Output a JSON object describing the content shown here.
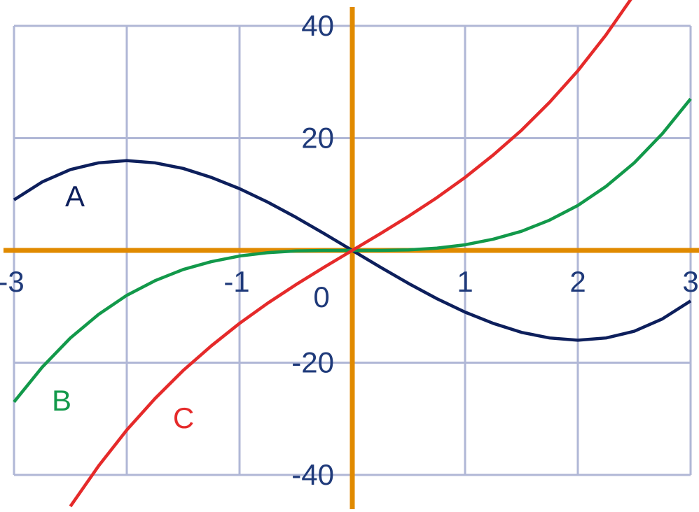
{
  "chart_data": {
    "type": "line",
    "xlim": [
      -3,
      3
    ],
    "ylim": [
      -40,
      40
    ],
    "xticks": [
      -3,
      -1,
      0,
      1,
      2,
      3
    ],
    "yticks": [
      -40,
      -20,
      20,
      40
    ],
    "xgrid": [
      -3,
      -2,
      -1,
      1,
      2,
      3
    ],
    "ygrid": [
      -40,
      -20,
      20,
      40
    ],
    "grid": true,
    "series": [
      {
        "name": "A",
        "color": "#0d1f5c",
        "x": [
          -3,
          -2.75,
          -2.5,
          -2.25,
          -2,
          -1.75,
          -1.5,
          -1.25,
          -1,
          -0.75,
          -0.5,
          -0.25,
          0,
          0.25,
          0.5,
          0.75,
          1,
          1.25,
          1.5,
          1.75,
          2,
          2.25,
          2.5,
          2.75,
          3
        ],
        "values": [
          9,
          12.2,
          14.4,
          15.6,
          16,
          15.6,
          14.6,
          13,
          11,
          8.6,
          5.9,
          3,
          0,
          -3,
          -5.9,
          -8.6,
          -11,
          -13,
          -14.6,
          -15.6,
          -16,
          -15.6,
          -14.4,
          -12.2,
          -9
        ]
      },
      {
        "name": "B",
        "color": "#12994a",
        "x": [
          -3,
          -2.75,
          -2.5,
          -2.25,
          -2,
          -1.75,
          -1.5,
          -1.25,
          -1,
          -0.75,
          -0.5,
          -0.25,
          0,
          0.25,
          0.5,
          0.75,
          1,
          1.25,
          1.5,
          1.75,
          2,
          2.25,
          2.5,
          2.75,
          3
        ],
        "values": [
          -27,
          -20.8,
          -15.6,
          -11.4,
          -8,
          -5.4,
          -3.4,
          -2,
          -1,
          -0.4,
          -0.1,
          0,
          0,
          0,
          0.1,
          0.4,
          1,
          2,
          3.4,
          5.4,
          8,
          11.4,
          15.6,
          20.8,
          27
        ]
      },
      {
        "name": "C",
        "color": "#e52a2a",
        "x": [
          -2.5,
          -2.25,
          -2,
          -1.75,
          -1.5,
          -1.25,
          -1,
          -0.75,
          -0.5,
          -0.25,
          0,
          0.25,
          0.5,
          0.75,
          1,
          1.25,
          1.5,
          1.75,
          2,
          2.25,
          2.5
        ],
        "values": [
          -45.6,
          -38.4,
          -32,
          -26.4,
          -21.4,
          -17,
          -13,
          -9.4,
          -6.1,
          -3,
          0,
          3,
          6.1,
          9.4,
          13,
          17,
          21.4,
          26.4,
          32,
          38.4,
          45.6
        ]
      }
    ]
  }
}
